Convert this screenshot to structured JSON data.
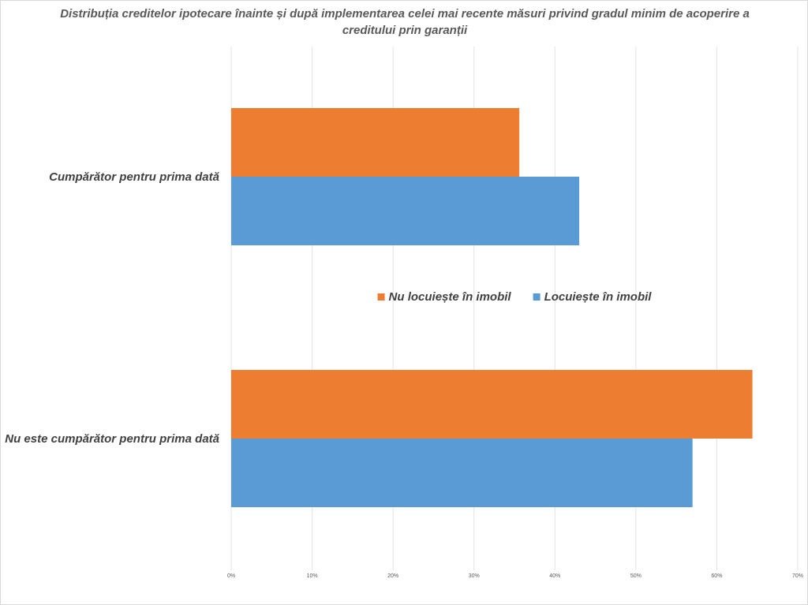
{
  "chart_data": {
    "type": "bar",
    "orientation": "horizontal",
    "title": "Distribuția creditelor ipotecare înainte și după implementarea celei mai recente măsuri privind gradul minim de acoperire a creditului prin garanții",
    "categories": [
      "Cumpărător pentru prima dată",
      "Nu este cumpărător pentru prima dată"
    ],
    "series": [
      {
        "name": "Nu locuiește în imobil",
        "color": "#ed7d31",
        "values": [
          35.6,
          64.4
        ]
      },
      {
        "name": "Locuiește în imobil",
        "color": "#5b9bd5",
        "values": [
          43.0,
          57.0
        ]
      }
    ],
    "xlim": [
      0,
      70
    ],
    "xticks": [
      "0%",
      "10%",
      "20%",
      "30%",
      "40%",
      "50%",
      "60%",
      "70%"
    ],
    "grid": true,
    "legend_position": "center"
  }
}
